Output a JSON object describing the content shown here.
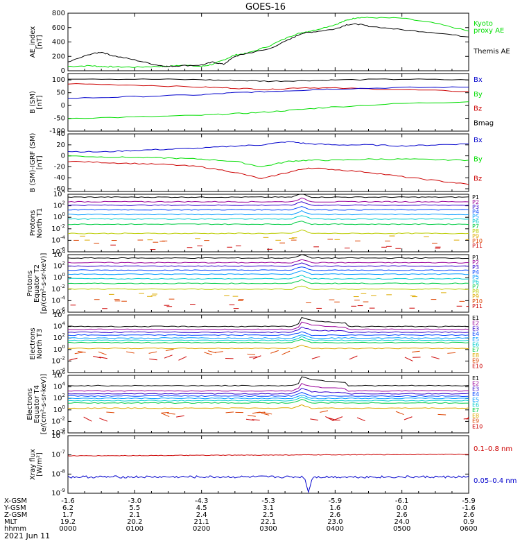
{
  "title": "GOES-16",
  "date_label": "2021 Jun 11",
  "colors": {
    "black": "#000000",
    "green": "#00dd00",
    "blue": "#0000cc",
    "red": "#cc0000",
    "axis": "#000000"
  },
  "chart_data": [
    {
      "type": "line",
      "ylabel_lines": [
        "AE_index",
        "[nT]"
      ],
      "ylim": [
        0,
        800
      ],
      "yscale": "linear",
      "yticks": [
        "0",
        "200",
        "400",
        "600",
        "800"
      ],
      "ytick_values": [
        0,
        200,
        400,
        600,
        800
      ],
      "legend": [
        {
          "text": "Kyoto",
          "color": "#00dd00"
        },
        {
          "text": "proxy AE",
          "color": "#00dd00"
        },
        {
          "text": "Themis AE",
          "color": "#000000"
        }
      ],
      "x_hours": [
        0,
        0.33,
        0.5,
        0.67,
        1.0,
        1.33,
        1.5,
        1.67,
        2.0,
        2.17,
        2.33,
        2.5,
        2.67,
        3.0,
        3.33,
        3.5,
        3.67,
        4.0,
        4.17,
        4.33,
        4.5,
        5.0,
        5.5,
        6.0
      ],
      "series": [
        {
          "name": "Kyoto proxy AE",
          "color": "#00dd00",
          "values": [
            60,
            70,
            60,
            55,
            50,
            60,
            60,
            80,
            60,
            90,
            150,
            220,
            240,
            340,
            480,
            530,
            560,
            640,
            700,
            740,
            740,
            730,
            660,
            550
          ]
        },
        {
          "name": "Themis AE",
          "color": "#000000",
          "values": [
            120,
            230,
            260,
            210,
            150,
            80,
            60,
            70,
            80,
            120,
            90,
            200,
            240,
            300,
            440,
            520,
            540,
            580,
            640,
            650,
            620,
            570,
            530,
            470
          ]
        }
      ]
    },
    {
      "type": "line",
      "ylabel_lines": [
        "B (SM)",
        "[nT]"
      ],
      "ylim": [
        -100,
        125
      ],
      "yscale": "linear",
      "yticks": [
        "-100",
        "-50",
        "0",
        "50",
        "100"
      ],
      "ytick_values": [
        -100,
        -50,
        0,
        50,
        100
      ],
      "legend": [
        {
          "text": "Bx",
          "color": "#0000cc"
        },
        {
          "text": "By",
          "color": "#00dd00"
        },
        {
          "text": "Bz",
          "color": "#cc0000"
        },
        {
          "text": "Bmag",
          "color": "#000000"
        }
      ],
      "x_hours": [
        0,
        1,
        2,
        2.5,
        3,
        3.5,
        4,
        5,
        6
      ],
      "series": [
        {
          "name": "Bmag",
          "color": "#000000",
          "values": [
            105,
            103,
            101,
            98,
            95,
            97,
            100,
            103,
            100
          ]
        },
        {
          "name": "Bz",
          "color": "#cc0000",
          "values": [
            85,
            80,
            72,
            68,
            62,
            70,
            68,
            62,
            55
          ]
        },
        {
          "name": "Bx",
          "color": "#0000cc",
          "values": [
            28,
            35,
            42,
            50,
            55,
            60,
            65,
            70,
            72
          ]
        },
        {
          "name": "By",
          "color": "#00dd00",
          "values": [
            -50,
            -45,
            -38,
            -32,
            -25,
            -15,
            -5,
            8,
            15
          ]
        }
      ]
    },
    {
      "type": "line",
      "ylabel_lines": [
        "B (SM)-IGRF (SM)",
        "[nT]"
      ],
      "ylim": [
        -65,
        40
      ],
      "yscale": "linear",
      "yticks": [
        "-60",
        "-40",
        "-20",
        "0",
        "20",
        "40"
      ],
      "ytick_values": [
        -60,
        -40,
        -20,
        0,
        20,
        40
      ],
      "legend": [
        {
          "text": "Bx",
          "color": "#0000cc"
        },
        {
          "text": "By",
          "color": "#00dd00"
        },
        {
          "text": "Bz",
          "color": "#cc0000"
        }
      ],
      "x_hours": [
        0,
        0.5,
        1,
        1.5,
        2,
        2.5,
        2.9,
        3.3,
        3.6,
        4,
        4.5,
        5,
        5.5,
        6
      ],
      "series": [
        {
          "name": "Bx",
          "color": "#0000cc",
          "values": [
            8,
            7,
            10,
            12,
            14,
            18,
            20,
            26,
            22,
            20,
            20,
            18,
            20,
            22
          ]
        },
        {
          "name": "By",
          "color": "#00dd00",
          "values": [
            0,
            -2,
            -3,
            -4,
            -6,
            -10,
            -20,
            -10,
            -8,
            -8,
            -6,
            -6,
            -7,
            -8
          ]
        },
        {
          "name": "Bz",
          "color": "#cc0000",
          "values": [
            -10,
            -12,
            -14,
            -16,
            -20,
            -30,
            -42,
            -30,
            -22,
            -25,
            -30,
            -38,
            -45,
            -52
          ]
        }
      ]
    },
    {
      "type": "line",
      "ylabel_lines": [
        "Protons",
        "North T1"
      ],
      "ylim_exp": [
        -6,
        4
      ],
      "yscale": "log",
      "ytick_exps": [
        -6,
        -4,
        -2,
        0,
        2,
        4
      ],
      "legend": [
        {
          "text": "P1",
          "color": "#000000"
        },
        {
          "text": "P2",
          "color": "#990099"
        },
        {
          "text": "P3",
          "color": "#3300cc"
        },
        {
          "text": "P4",
          "color": "#0044ff"
        },
        {
          "text": "P5",
          "color": "#0099ff"
        },
        {
          "text": "P6",
          "color": "#00cccc"
        },
        {
          "text": "P7",
          "color": "#00cc44"
        },
        {
          "text": "P8",
          "color": "#bbcc00"
        },
        {
          "text": "P9",
          "color": "#ddaa00"
        },
        {
          "text": "P10",
          "color": "#dd4400"
        },
        {
          "text": "P11",
          "color": "#cc0000"
        }
      ],
      "levels_log": [
        3.5,
        2.7,
        2.1,
        1.3,
        0.5,
        -0.3,
        -1.2,
        -2.8,
        -3.6,
        -4.2,
        -5.2
      ]
    },
    {
      "type": "line",
      "ylabel_lines": [
        "Protons",
        "Equator T2",
        "[p/(cm²-s-sr-keV)]"
      ],
      "ylim_exp": [
        -6,
        4
      ],
      "yscale": "log",
      "ytick_exps": [
        -6,
        -4,
        -2,
        0,
        2,
        4
      ],
      "legend": [
        {
          "text": "P1",
          "color": "#000000"
        },
        {
          "text": "P2",
          "color": "#990099"
        },
        {
          "text": "P3",
          "color": "#3300cc"
        },
        {
          "text": "P4",
          "color": "#0044ff"
        },
        {
          "text": "P5",
          "color": "#0099ff"
        },
        {
          "text": "P6",
          "color": "#00cccc"
        },
        {
          "text": "P7",
          "color": "#00cc44"
        },
        {
          "text": "P8",
          "color": "#bbcc00"
        },
        {
          "text": "P9",
          "color": "#ddaa00"
        },
        {
          "text": "P10",
          "color": "#dd4400"
        },
        {
          "text": "P11",
          "color": "#cc0000"
        }
      ],
      "levels_log": [
        3.4,
        2.6,
        2.0,
        1.3,
        0.6,
        -0.2,
        -1.0,
        -2.0,
        -3.0,
        -4.0,
        -5.0
      ]
    },
    {
      "type": "line",
      "ylabel_lines": [
        "Electrons",
        "North T3"
      ],
      "ylim_exp": [
        -4,
        6
      ],
      "yscale": "log",
      "ytick_exps": [
        -4,
        -2,
        0,
        2,
        4,
        6
      ],
      "legend": [
        {
          "text": "E1",
          "color": "#000000"
        },
        {
          "text": "E2",
          "color": "#990099"
        },
        {
          "text": "E3",
          "color": "#3300cc"
        },
        {
          "text": "E4",
          "color": "#0044ff"
        },
        {
          "text": "E5",
          "color": "#0099ff"
        },
        {
          "text": "E6",
          "color": "#00cccc"
        },
        {
          "text": "E7",
          "color": "#00cc44"
        },
        {
          "text": "E8",
          "color": "#ddaa00"
        },
        {
          "text": "E9",
          "color": "#dd4400"
        },
        {
          "text": "E10",
          "color": "#cc0000"
        }
      ],
      "levels_log": [
        4.0,
        3.5,
        3.0,
        2.5,
        2.0,
        1.6,
        1.2,
        0.2,
        -0.5,
        -1.5
      ]
    },
    {
      "type": "line",
      "ylabel_lines": [
        "Electrons",
        "Equator T4",
        "[e/(cm²-s-sr-keV)]"
      ],
      "ylim_exp": [
        -4,
        6
      ],
      "yscale": "log",
      "ytick_exps": [
        -4,
        -2,
        0,
        2,
        4,
        6
      ],
      "legend": [
        {
          "text": "E1",
          "color": "#000000"
        },
        {
          "text": "E2",
          "color": "#990099"
        },
        {
          "text": "E3",
          "color": "#3300cc"
        },
        {
          "text": "E4",
          "color": "#0044ff"
        },
        {
          "text": "E5",
          "color": "#0099ff"
        },
        {
          "text": "E6",
          "color": "#00cccc"
        },
        {
          "text": "E7",
          "color": "#00cc44"
        },
        {
          "text": "E8",
          "color": "#ddaa00"
        },
        {
          "text": "E9",
          "color": "#dd4400"
        },
        {
          "text": "E10",
          "color": "#cc0000"
        }
      ],
      "levels_log": [
        4.2,
        3.3,
        2.8,
        2.4,
        2.0,
        1.6,
        1.2,
        0.3,
        -0.6,
        -1.5
      ]
    },
    {
      "type": "line",
      "ylabel_lines": [
        "Xray flux",
        "[W/m²]"
      ],
      "ylim_exp": [
        -9,
        -6
      ],
      "yscale": "log",
      "ytick_exps": [
        -9,
        -8,
        -7,
        -6
      ],
      "legend": [
        {
          "text": "0.1–0.8 nm",
          "color": "#cc0000"
        },
        {
          "text": "0.05–0.4 nm",
          "color": "#0000cc"
        }
      ],
      "series": [
        {
          "name": "0.1-0.8 nm",
          "color": "#cc0000",
          "level_log": -7.05
        },
        {
          "name": "0.05-0.4 nm",
          "color": "#0000cc",
          "level_log": -8.15
        }
      ]
    }
  ],
  "x_axis": {
    "rows": [
      {
        "label": "X-GSM",
        "values": [
          "-1.6",
          "-3.0",
          "-4.3",
          "-5.3",
          "-5.9",
          "-6.1",
          "-5.9"
        ]
      },
      {
        "label": "Y-GSM",
        "values": [
          "6.2",
          "5.5",
          "4.5",
          "3.1",
          "1.6",
          "0.0",
          "-1.6"
        ]
      },
      {
        "label": "Z-GSM",
        "values": [
          "1.7",
          "2.1",
          "2.4",
          "2.5",
          "2.6",
          "2.6",
          "2.6"
        ]
      },
      {
        "label": "MLT",
        "values": [
          "19.2",
          "20.2",
          "21.1",
          "22.1",
          "23.0",
          "24.0",
          "0.9"
        ]
      },
      {
        "label": "hhmm",
        "values": [
          "0000",
          "0100",
          "0200",
          "0300",
          "0400",
          "0500",
          "0600"
        ]
      }
    ]
  }
}
